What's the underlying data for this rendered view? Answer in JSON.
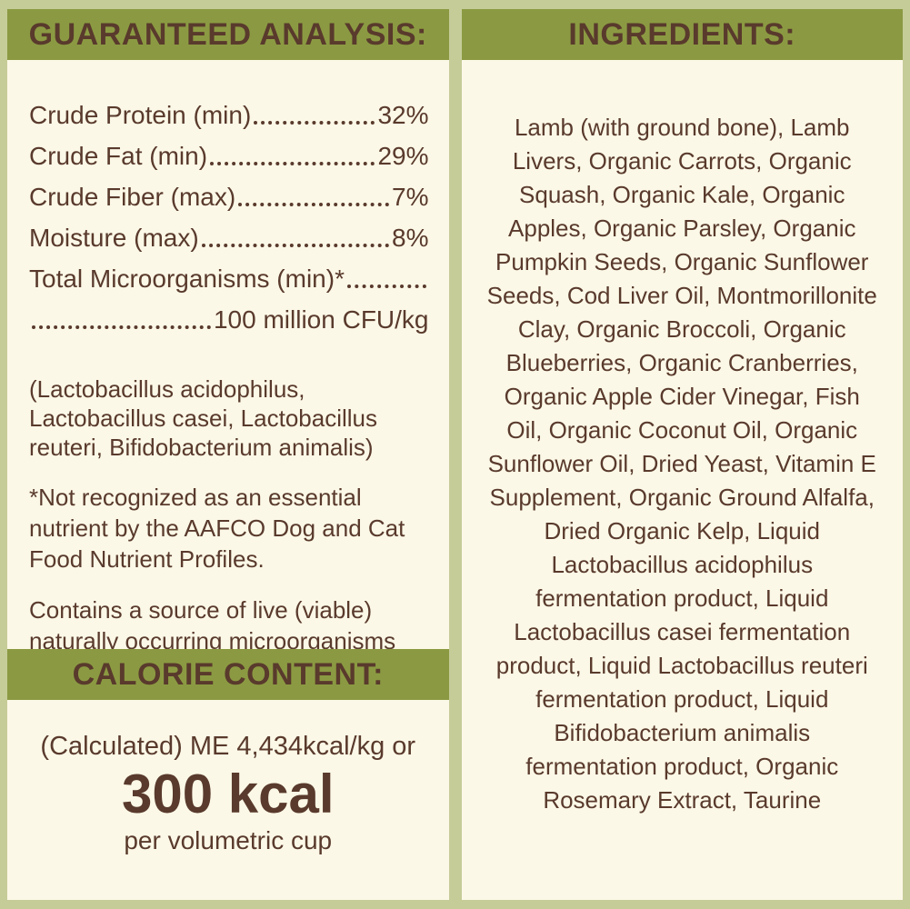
{
  "colors": {
    "border": "#c5cc98",
    "header_bg": "#8b9a42",
    "panel_bg": "#fcf8e7",
    "text": "#593a2c"
  },
  "guaranteed_analysis": {
    "title": "GUARANTEED ANALYSIS:",
    "rows": [
      {
        "label": "Crude Protein (min)",
        "value": "32%"
      },
      {
        "label": "Crude Fat (min)",
        "value": "29%"
      },
      {
        "label": "Crude Fiber (max)",
        "value": "7%"
      },
      {
        "label": "Moisture (max)",
        "value": "8%"
      },
      {
        "label": "Total Microorganisms (min)*",
        "value": "100 million CFU/kg"
      }
    ],
    "microorganisms_list": "(Lactobacillus acidophilus, Lactobacillus casei, Lactobacillus reuteri, Bifidobacterium animalis)",
    "footnote": "*Not recognized as an essential nutrient by the AAFCO Dog and Cat Food Nutrient Profiles.",
    "live_note": "Contains a source of live (viable) naturally occurring microorganisms"
  },
  "calorie_content": {
    "title": "CALORIE CONTENT:",
    "line1": "(Calculated) ME 4,434kcal/kg or",
    "value": "300 kcal",
    "line3": "per volumetric cup"
  },
  "ingredients": {
    "title": "INGREDIENTS:",
    "text": "Lamb (with ground bone), Lamb Livers, Organic Carrots, Organic Squash, Organic Kale, Organic Apples, Organic Parsley, Organic Pumpkin Seeds, Organic Sunflower Seeds, Cod Liver Oil, Montmorillonite Clay, Organic Broccoli, Organic Blueberries, Organic Cranberries, Organic Apple Cider Vinegar, Fish Oil, Organic Coconut Oil, Organic Sunflower Oil, Dried Yeast, Vitamin E Supplement, Organic Ground Alfalfa, Dried Organic Kelp, Liquid Lactobacillus acidophilus fermentation product, Liquid Lactobacillus casei fermentation product, Liquid Lactobacillus reuteri fermentation product, Liquid Bifidobacterium animalis fermentation product, Organic Rosemary Extract, Taurine"
  }
}
